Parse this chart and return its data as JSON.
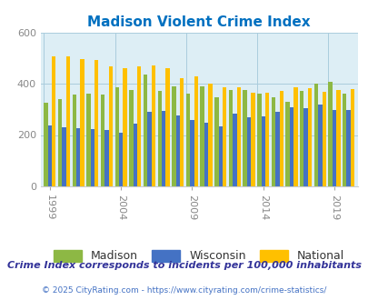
{
  "title": "Madison Violent Crime Index",
  "years": [
    1999,
    2000,
    2001,
    2002,
    2003,
    2004,
    2005,
    2006,
    2007,
    2008,
    2009,
    2010,
    2011,
    2012,
    2013,
    2014,
    2015,
    2016,
    2017,
    2018,
    2019,
    2020
  ],
  "madison": [
    325,
    342,
    358,
    363,
    360,
    387,
    378,
    437,
    372,
    392,
    362,
    392,
    348,
    378,
    378,
    362,
    348,
    330,
    372,
    400,
    410,
    362
  ],
  "wisconsin": [
    238,
    232,
    225,
    222,
    220,
    210,
    244,
    290,
    294,
    275,
    260,
    248,
    233,
    283,
    270,
    272,
    290,
    308,
    305,
    320,
    297,
    297
  ],
  "national": [
    507,
    507,
    497,
    494,
    470,
    463,
    469,
    473,
    463,
    424,
    430,
    403,
    387,
    388,
    365,
    366,
    373,
    386,
    382,
    369,
    378,
    379
  ],
  "bar_width": 0.28,
  "colors": {
    "madison": "#8db844",
    "wisconsin": "#4472c4",
    "national": "#ffc000"
  },
  "ylim": [
    0,
    600
  ],
  "yticks": [
    0,
    200,
    400,
    600
  ],
  "xlabel_years": [
    1999,
    2004,
    2009,
    2014,
    2019
  ],
  "outer_bg_color": "#ffffff",
  "plot_bg": "#ddeef5",
  "title_color": "#0070c0",
  "subtitle": "Crime Index corresponds to incidents per 100,000 inhabitants",
  "subtitle_color": "#333399",
  "footer": "© 2025 CityRating.com - https://www.cityrating.com/crime-statistics/",
  "footer_color": "#4472c4",
  "legend_labels": [
    "Madison",
    "Wisconsin",
    "National"
  ],
  "grid_color": "#aaccdd"
}
